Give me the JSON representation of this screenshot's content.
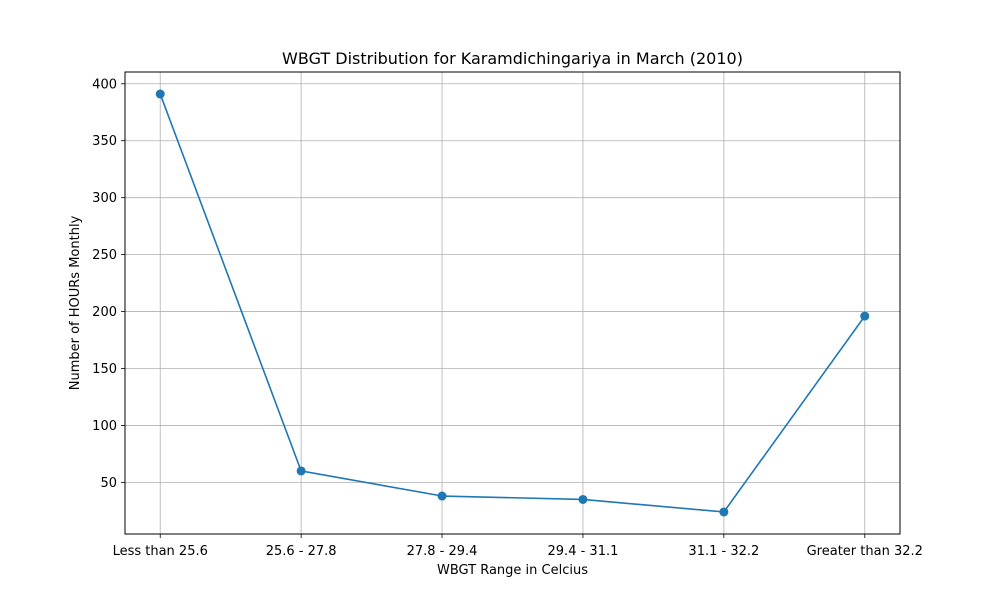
{
  "chart_data": {
    "type": "line",
    "title": "WBGT Distribution for Karamdichingariya in March (2010)",
    "xlabel": "WBGT Range in Celcius",
    "ylabel": "Number of HOURs Monthly",
    "categories": [
      "Less than 25.6",
      "25.6 - 27.8",
      "27.8 - 29.4",
      "29.4 - 31.1",
      "31.1 - 32.2",
      "Greater than 32.2"
    ],
    "series": [
      {
        "values": [
          391,
          60,
          38,
          35,
          24,
          196
        ]
      }
    ],
    "yticks": [
      50,
      100,
      150,
      200,
      250,
      300,
      350,
      400
    ],
    "ylim": [
      4.65,
      410.35
    ],
    "grid": true,
    "line_color": "#1f77b4",
    "marker": "circle"
  }
}
